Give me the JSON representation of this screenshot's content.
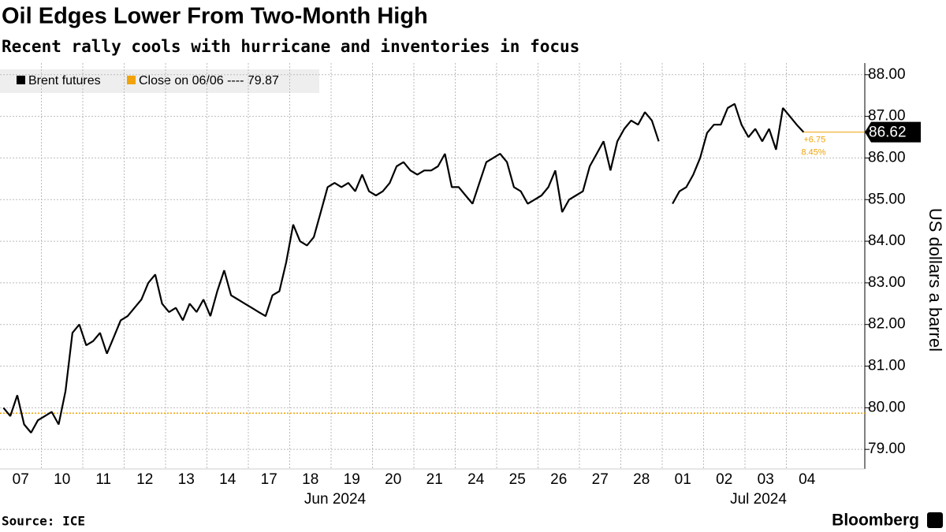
{
  "chart_data": {
    "type": "line",
    "title": "Oil Edges Lower From Two-Month High",
    "subtitle": "Recent rally cools with hurricane and inventories in focus",
    "y_label": "US dollars a barrel",
    "source": "Source: ICE",
    "brand": "Bloomberg",
    "categories": [
      "07",
      "10",
      "11",
      "12",
      "13",
      "14",
      "17",
      "18",
      "19",
      "20",
      "21",
      "24",
      "25",
      "26",
      "27",
      "28",
      "01",
      "02",
      "03",
      "04"
    ],
    "months": [
      "Jun 2024",
      "Jul 2024"
    ],
    "series": [
      {
        "name": "Brent futures",
        "color": "#000000",
        "values": [
          [
            80.0,
            79.8,
            80.3,
            79.6,
            79.4,
            79.7
          ],
          [
            79.8,
            79.9,
            79.6,
            80.4,
            81.8,
            82.0
          ],
          [
            81.5,
            81.6,
            81.8,
            81.3,
            81.7,
            82.1
          ],
          [
            82.2,
            82.4,
            82.6,
            83.0,
            83.2,
            82.5
          ],
          [
            82.3,
            82.4,
            82.1,
            82.5,
            82.3,
            82.6
          ],
          [
            82.2,
            82.8,
            83.3,
            82.7,
            82.6,
            82.5
          ],
          [
            82.4,
            82.3,
            82.2,
            82.7,
            82.8,
            83.5
          ],
          [
            84.4,
            84.0,
            83.9,
            84.1,
            84.7,
            85.3
          ],
          [
            85.4,
            85.3,
            85.4,
            85.2,
            85.6,
            85.2
          ],
          [
            85.1,
            85.2,
            85.4,
            85.8,
            85.9,
            85.7
          ],
          [
            85.6,
            85.7,
            85.7,
            85.8,
            86.1,
            85.3
          ],
          [
            85.3,
            85.1,
            84.9,
            85.4,
            85.9,
            86.0
          ],
          [
            86.1,
            85.9,
            85.3,
            85.2,
            84.9,
            85.0
          ],
          [
            85.1,
            85.3,
            85.7,
            84.7,
            85.0,
            85.1
          ],
          [
            85.2,
            85.8,
            86.1,
            86.4,
            85.7,
            86.4
          ],
          [
            86.7,
            86.9,
            86.8,
            87.1,
            86.9,
            86.4
          ],
          [
            null,
            84.9,
            85.2,
            85.3,
            85.6,
            86.0
          ],
          [
            86.6,
            86.8,
            86.8,
            87.2,
            87.3,
            86.8
          ],
          [
            86.5,
            86.7,
            86.4,
            86.7,
            86.2,
            87.2
          ],
          [
            87.0,
            86.8,
            86.62,
            null,
            null,
            null
          ]
        ]
      }
    ],
    "reference": {
      "name": "Close on 06/06 ----",
      "value": 79.87,
      "color": "#f0a30a"
    },
    "change": {
      "value": "+6.75",
      "percent": "8.45%"
    },
    "ylim": [
      78.53,
      88.28
    ],
    "yticks": [
      {
        "value": 79,
        "label": "79.00"
      },
      {
        "value": 80,
        "label": "80.00"
      },
      {
        "value": 81,
        "label": "81.00"
      },
      {
        "value": 82,
        "label": "82.00"
      },
      {
        "value": 83,
        "label": "83.00"
      },
      {
        "value": 84,
        "label": "84.00"
      },
      {
        "value": 85,
        "label": "85.00"
      },
      {
        "value": 86,
        "label": "86.00"
      },
      {
        "value": 87,
        "label": "87.00"
      },
      {
        "value": 88,
        "label": "88.00"
      }
    ],
    "grid": true
  }
}
